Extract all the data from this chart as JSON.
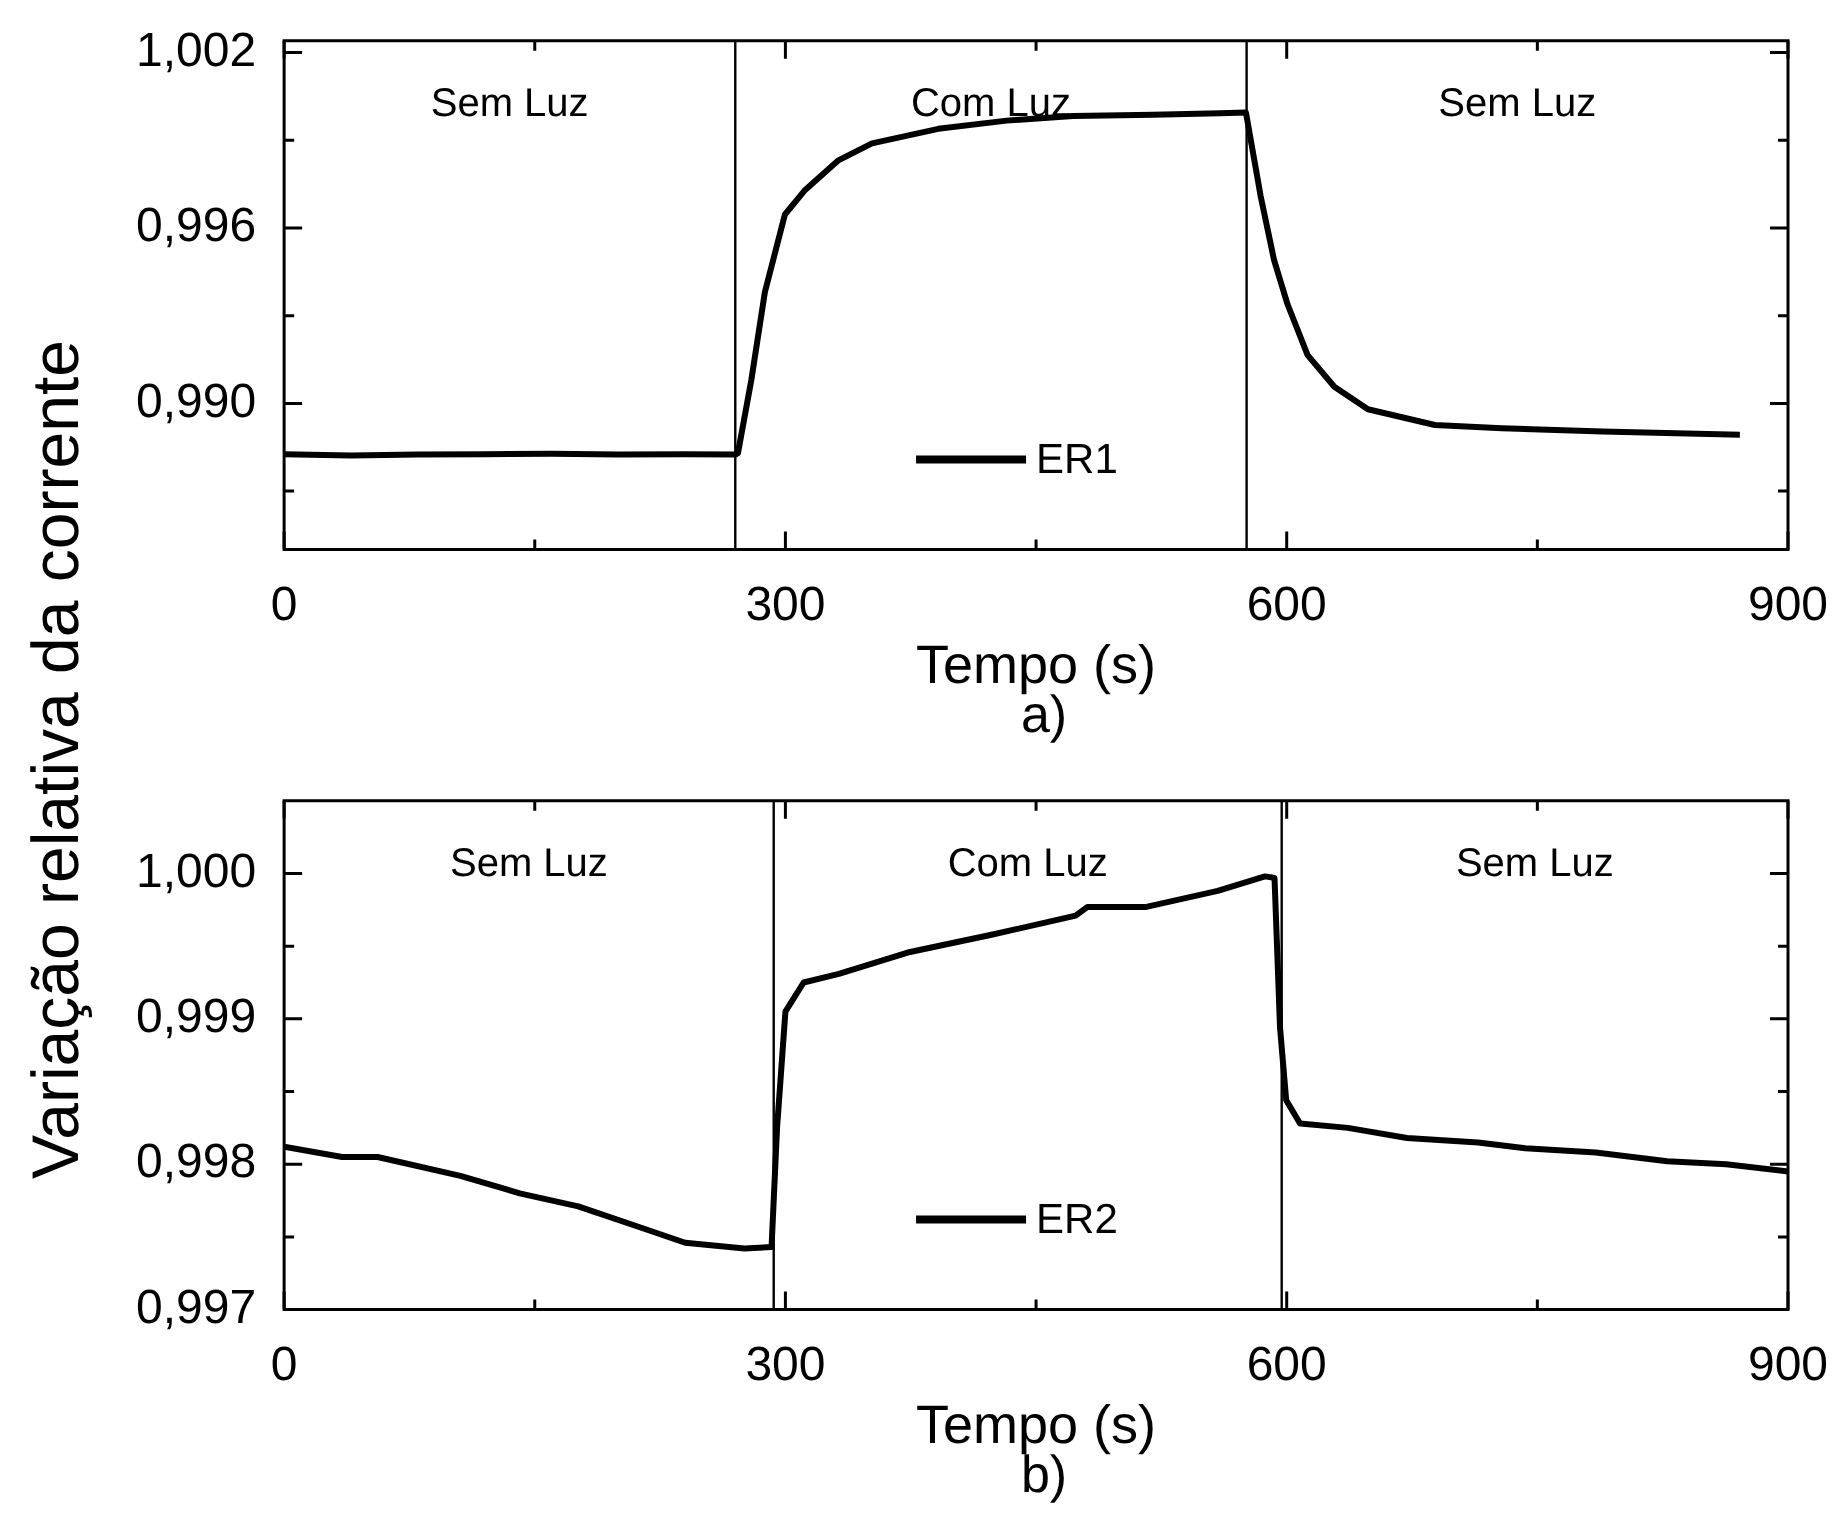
{
  "chart_data": [
    {
      "type": "line",
      "xlabel": "Tempo (s)",
      "ylabel": "Variação relativa da corrente",
      "xlim": [
        0,
        900
      ],
      "xticks": [
        0,
        {
          "value": 150,
          "label": null
        },
        300,
        {
          "value": 450,
          "label": null
        },
        600,
        {
          "value": 750,
          "label": null
        },
        900
      ],
      "ylim": [
        0.985,
        1.0024
      ],
      "yticks": [
        {
          "value": 0.987,
          "label": null
        },
        {
          "value": 0.99,
          "label": "0,990"
        },
        {
          "value": 0.993,
          "label": null
        },
        {
          "value": 0.996,
          "label": "0,996"
        },
        {
          "value": 0.999,
          "label": null
        },
        {
          "value": 1.002,
          "label": "1,002"
        }
      ],
      "legend": "bottom",
      "series": [
        {
          "name": "ER1",
          "color": "#000000",
          "x": [
            0,
            40,
            80,
            120,
            160,
            200,
            240,
            270,
            271.6,
            279.6,
            287.7,
            299.7,
            311.8,
            331.4,
            351.8,
            391.5,
            432.4,
            472.1,
            520,
            560,
            575.6,
            584.4,
            592.4,
            600.5,
            612.5,
            628.5,
            648.6,
            688.7,
            728.8,
            788.9,
            871.2
          ],
          "values": [
            0.98826,
            0.98822,
            0.98825,
            0.98826,
            0.98828,
            0.98825,
            0.98826,
            0.98825,
            0.9883,
            0.9908,
            0.9938,
            0.99646,
            0.9973,
            0.9983,
            0.99889,
            0.99939,
            0.99967,
            0.99983,
            0.99987,
            0.99992,
            0.99995,
            0.99709,
            0.99491,
            0.99339,
            0.99165,
            0.99057,
            0.9898,
            0.98926,
            0.98915,
            0.98904,
            0.98893
          ]
        }
      ],
      "ref_lines": [
        {
          "axis": "x",
          "value": 270,
          "color": "#000000"
        },
        {
          "axis": "x",
          "value": 576,
          "color": "#000000"
        }
      ],
      "annotations": [
        "Sem Luz",
        "Com Luz",
        "Sem Luz",
        "a)"
      ]
    },
    {
      "type": "line",
      "xlabel": "Tempo (s)",
      "xlim": [
        0,
        900
      ],
      "xticks": [
        0,
        {
          "value": 150,
          "label": null
        },
        300,
        {
          "value": 450,
          "label": null
        },
        600,
        {
          "value": 750,
          "label": null
        },
        900
      ],
      "ylim": [
        0.997,
        1.0005
      ],
      "yticks": [
        {
          "value": 0.997,
          "label": "0,997"
        },
        {
          "value": 0.9975,
          "label": null
        },
        {
          "value": 0.998,
          "label": "0,998"
        },
        {
          "value": 0.9985,
          "label": null
        },
        {
          "value": 0.999,
          "label": "0,999"
        },
        {
          "value": 0.9995,
          "label": null
        },
        {
          "value": 1,
          "label": "1,000"
        }
      ],
      "legend": "bottom",
      "series": [
        {
          "name": "ER2",
          "color": "#000000",
          "x": [
            0,
            34.7,
            56,
            105.5,
            141,
            176,
            212,
            240,
            275.5,
            291.7,
            295,
            300,
            310.9,
            332,
            374.6,
            424,
            473.7,
            480.8,
            516,
            558.7,
            587,
            592.7,
            596,
            599.7,
            608,
            636.6,
            672,
            714.5,
            742.8,
            785,
            827.7,
            863,
            900
          ],
          "values": [
            0.99812,
            0.99805,
            0.99805,
            0.99792,
            0.9978,
            0.99771,
            0.99757,
            0.99746,
            0.99742,
            0.99743,
            0.99825,
            0.99905,
            0.99925,
            0.99931,
            0.99946,
            0.99958,
            0.99971,
            0.99977,
            0.99977,
            0.99988,
            0.99998,
            0.99997,
            0.99894,
            0.99844,
            0.99828,
            0.99825,
            0.99818,
            0.99815,
            0.99811,
            0.99808,
            0.99802,
            0.998,
            0.99795
          ]
        }
      ],
      "ref_lines": [
        {
          "axis": "x",
          "value": 293,
          "color": "#000000"
        },
        {
          "axis": "x",
          "value": 597,
          "color": "#000000"
        }
      ],
      "annotations": [
        "Sem Luz",
        "Com Luz",
        "Sem Luz",
        "b)"
      ]
    }
  ]
}
